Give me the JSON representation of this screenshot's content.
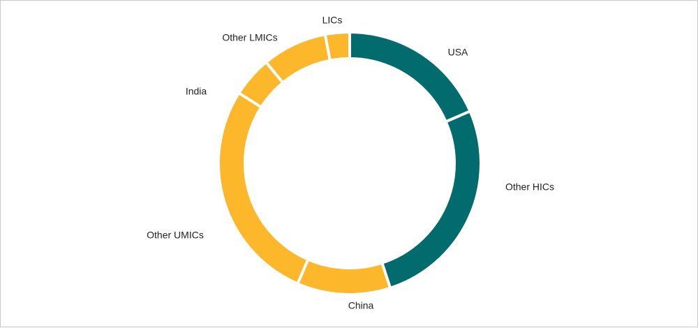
{
  "chart_data": {
    "type": "pie",
    "style": "donut",
    "start_angle_deg": 0,
    "direction": "clockwise",
    "categories": [
      "USA",
      "Other HICs",
      "China",
      "Other UMICs",
      "India",
      "Other LMICs",
      "LICs"
    ],
    "values": [
      18.5,
      26.5,
      11.5,
      27.5,
      5.0,
      8.0,
      3.0
    ],
    "colors": [
      "#026b6e",
      "#026b6e",
      "#fdb72b",
      "#fdb72b",
      "#fdb72b",
      "#fdb72b",
      "#fdb72b"
    ]
  },
  "colors": {
    "high_income": "#026b6e",
    "other_income": "#fdb72b",
    "slice_separator": "#ffffff"
  }
}
